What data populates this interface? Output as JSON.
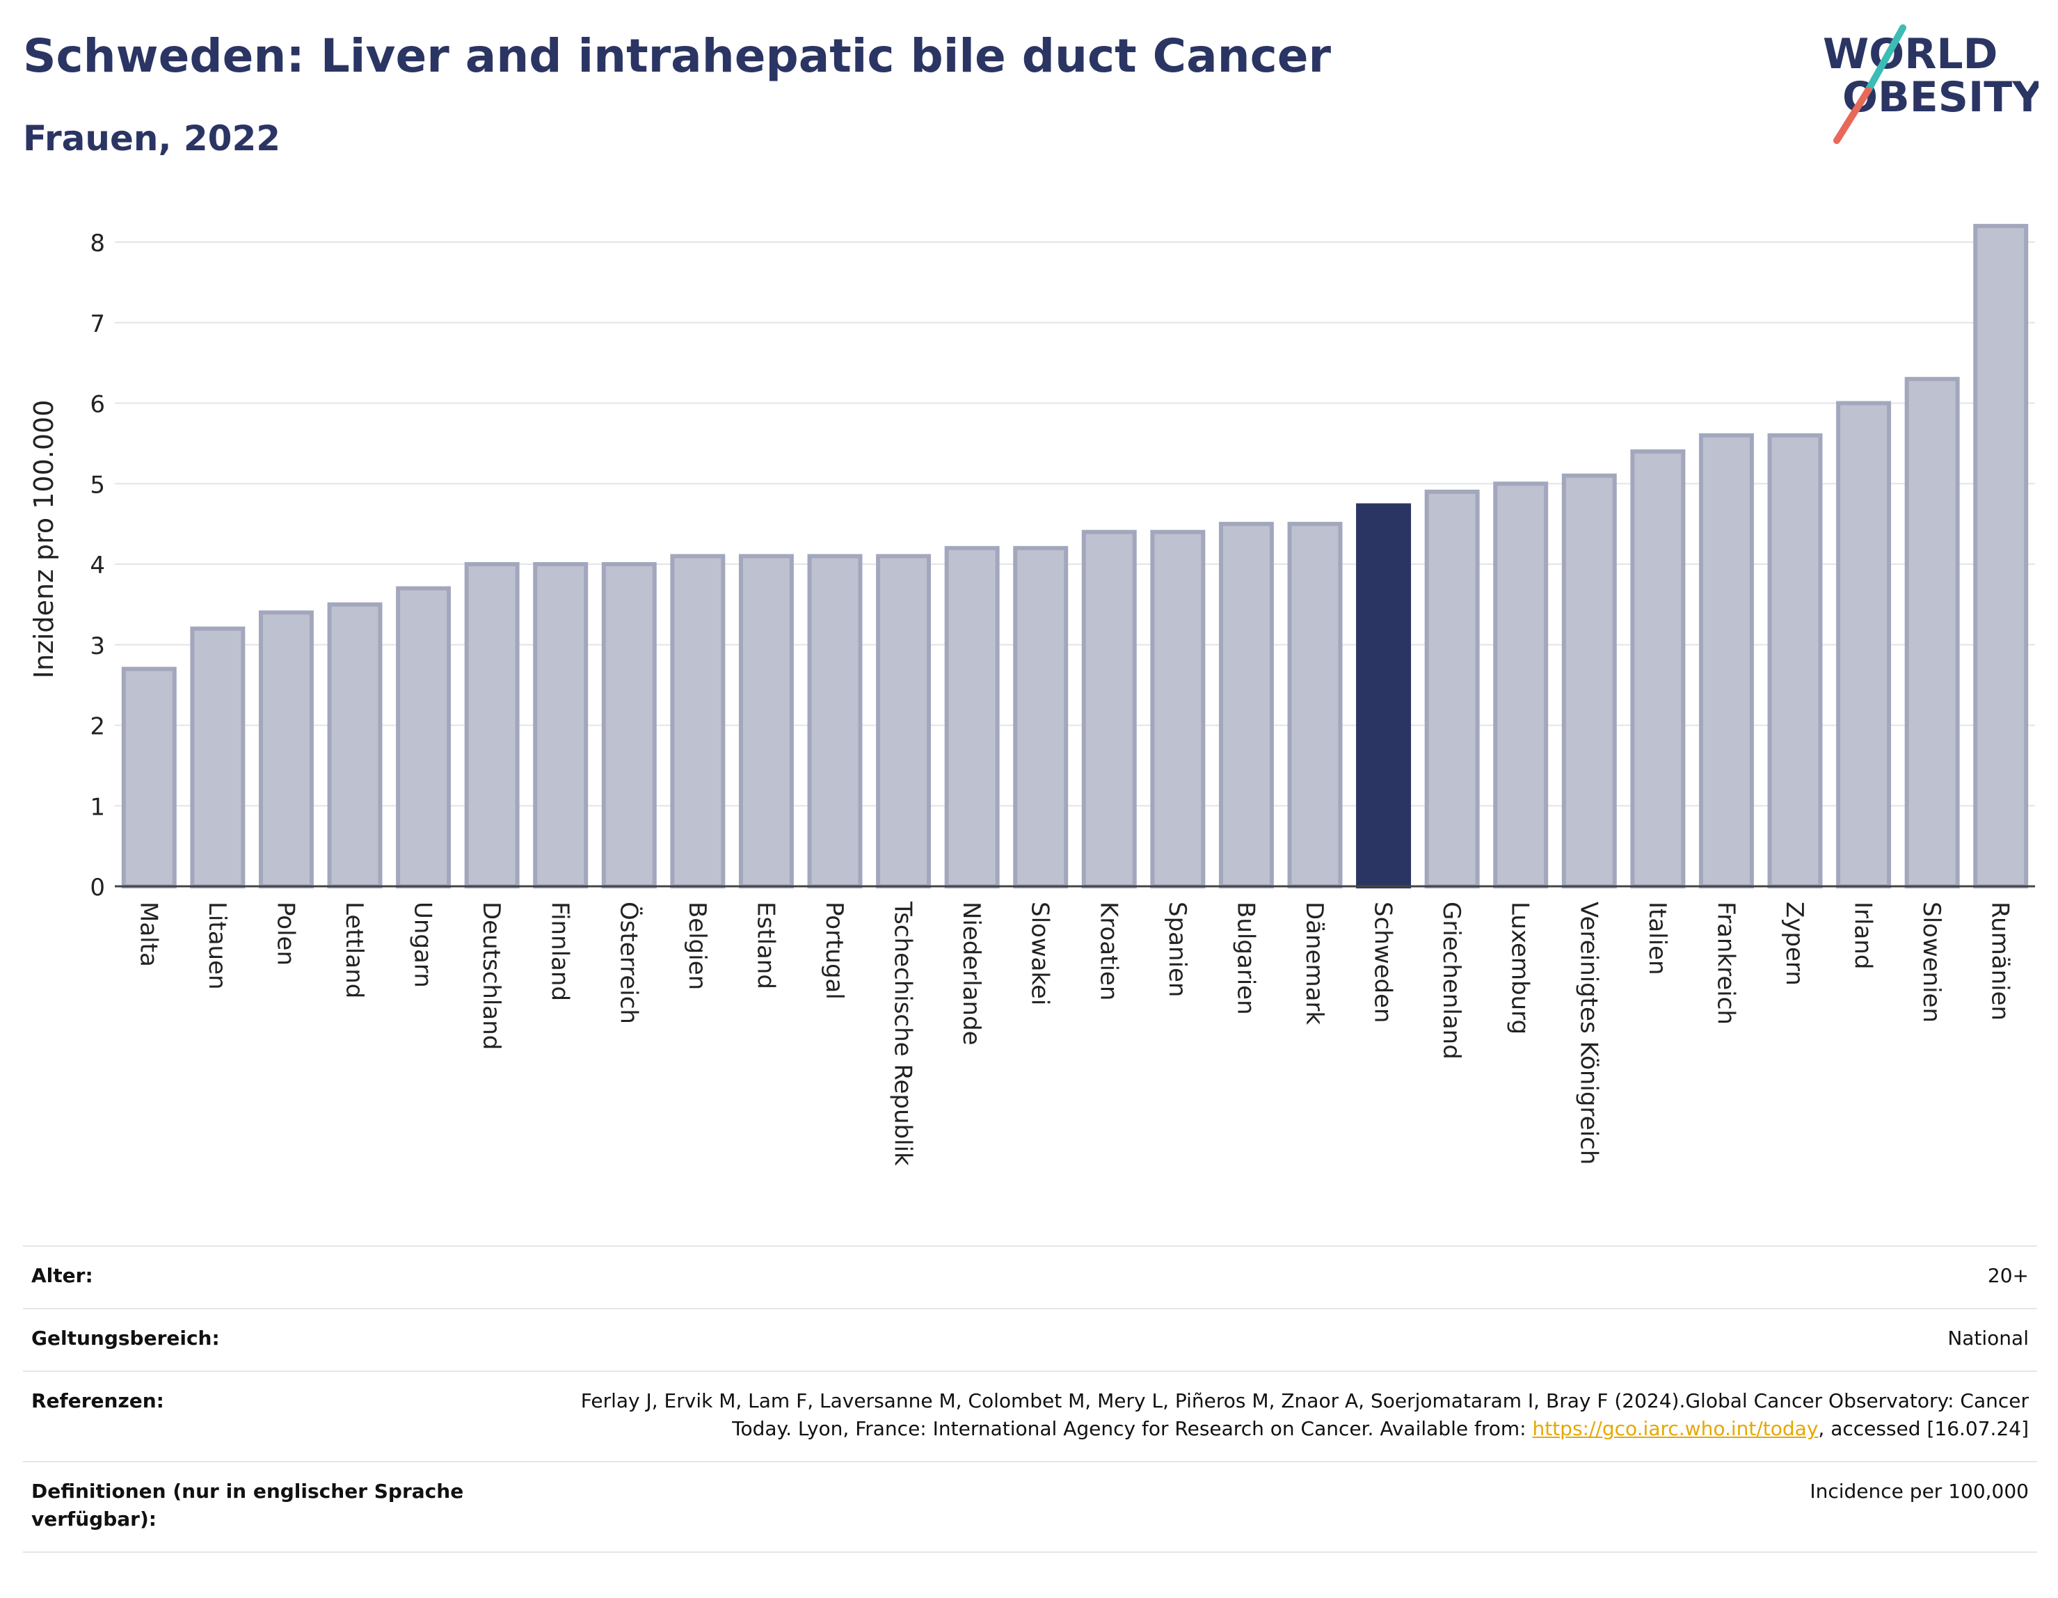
{
  "header": {
    "title": "Schweden: Liver and intrahepatic bile duct Cancer",
    "subtitle": "Frauen, 2022"
  },
  "logo": {
    "line1": "WORLD",
    "line2": "OBESITY"
  },
  "colors": {
    "bar_default": "#bec1cf",
    "bar_border": "#a3a7bd",
    "bar_highlight": "#2b3563",
    "text_dark": "#2b3563",
    "logo_slash_teal": "#3cbcb4",
    "logo_slash_coral": "#e8695a",
    "link": "#e6a800"
  },
  "chart_data": {
    "type": "bar",
    "title": "Schweden: Liver and intrahepatic bile duct Cancer",
    "subtitle": "Frauen, 2022",
    "ylabel": "Inzidenz pro 100.000",
    "xlabel": "",
    "ylim": [
      0,
      8.5
    ],
    "yticks": [
      0,
      1,
      2,
      3,
      4,
      5,
      6,
      7,
      8
    ],
    "grid": true,
    "highlight": "Schweden",
    "categories": [
      "Malta",
      "Litauen",
      "Polen",
      "Lettland",
      "Ungarn",
      "Deutschland",
      "Finnland",
      "Österreich",
      "Belgien",
      "Estland",
      "Portugal",
      "Tschechische Republik",
      "Niederlande",
      "Slowakei",
      "Kroatien",
      "Spanien",
      "Bulgarien",
      "Dänemark",
      "Schweden",
      "Griechenland",
      "Luxemburg",
      "Vereinigtes Königreich",
      "Italien",
      "Frankreich",
      "Zypern",
      "Irland",
      "Slowenien",
      "Rumänien"
    ],
    "values": [
      2.7,
      3.2,
      3.4,
      3.5,
      3.7,
      4.0,
      4.0,
      4.0,
      4.1,
      4.1,
      4.1,
      4.1,
      4.2,
      4.2,
      4.4,
      4.4,
      4.5,
      4.5,
      4.73,
      4.9,
      5.0,
      5.1,
      5.4,
      5.6,
      5.6,
      6.0,
      6.3,
      8.2
    ]
  },
  "meta": {
    "age_label": "Alter:",
    "age_value": "20+",
    "scope_label": "Geltungsbereich:",
    "scope_value": "National",
    "refs_label": "Referenzen:",
    "refs_text_1": "Ferlay J, Ervik M, Lam F, Laversanne M, Colombet M, Mery L, Piñeros M, Znaor A, Soerjomataram I, Bray F (2024).Global Cancer Observatory: Cancer Today. Lyon, France: International Agency for Research on Cancer. Available from: ",
    "refs_link": "https://gco.iarc.who.int/today",
    "refs_text_2": ", accessed [16.07.24]",
    "defs_label": "Definitionen (nur in englischer Sprache verfügbar):",
    "defs_value": "Incidence per 100,000"
  }
}
